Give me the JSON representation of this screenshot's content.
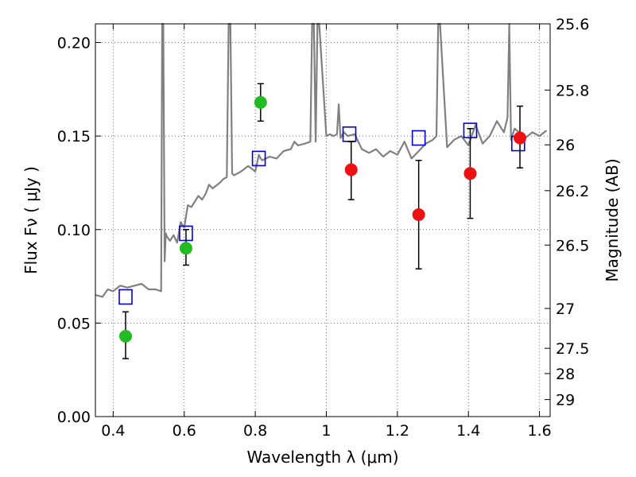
{
  "chart_data": {
    "type": "scatter",
    "title": "",
    "xlabel": "Wavelength  λ (μm)",
    "ylabel": "Flux  Fν  ( μJy )",
    "ylabel_right": "Magnitude (AB)",
    "xlim": [
      0.35,
      1.63
    ],
    "ylim": [
      0.0,
      0.21
    ],
    "grid": true,
    "x_ticks": [
      0.4,
      0.6,
      0.8,
      1.0,
      1.2,
      1.4,
      1.6
    ],
    "x_tick_labels": [
      "0.4",
      "0.6",
      "0.8",
      "1",
      "1.2",
      "1.4",
      "1.6"
    ],
    "y_ticks": [
      0.0,
      0.05,
      0.1,
      0.15,
      0.2
    ],
    "y_tick_labels": [
      "0.00",
      "0.05",
      "0.10",
      "0.15",
      "0.20"
    ],
    "right_axis_ticks": [
      {
        "label": "25.6",
        "flux": 0.21
      },
      {
        "label": "25.8",
        "flux": 0.1746
      },
      {
        "label": "26",
        "flux": 0.1453
      },
      {
        "label": "26.2",
        "flux": 0.1208
      },
      {
        "label": "26.5",
        "flux": 0.0917
      },
      {
        "label": "27",
        "flux": 0.0578
      },
      {
        "label": "27.5",
        "flux": 0.0365
      },
      {
        "label": "28",
        "flux": 0.023
      },
      {
        "label": "29",
        "flux": 0.0091
      }
    ],
    "series": [
      {
        "kind": "line",
        "color": "#808080",
        "x": [
          0.35,
          0.37,
          0.385,
          0.4,
          0.42,
          0.44,
          0.46,
          0.48,
          0.5,
          0.52,
          0.535,
          0.538,
          0.541,
          0.545,
          0.548,
          0.552,
          0.56,
          0.57,
          0.58,
          0.59,
          0.6,
          0.61,
          0.62,
          0.63,
          0.64,
          0.65,
          0.66,
          0.67,
          0.68,
          0.7,
          0.71,
          0.72,
          0.725,
          0.73,
          0.735,
          0.74,
          0.76,
          0.78,
          0.8,
          0.81,
          0.815,
          0.82,
          0.84,
          0.86,
          0.88,
          0.9,
          0.91,
          0.92,
          0.94,
          0.955,
          0.96,
          0.965,
          0.97,
          0.975,
          0.98,
          1.0,
          1.01,
          1.02,
          1.03,
          1.035,
          1.04,
          1.05,
          1.06,
          1.08,
          1.1,
          1.12,
          1.14,
          1.16,
          1.18,
          1.2,
          1.22,
          1.24,
          1.26,
          1.28,
          1.3,
          1.31,
          1.315,
          1.32,
          1.34,
          1.36,
          1.38,
          1.4,
          1.42,
          1.44,
          1.46,
          1.48,
          1.5,
          1.51,
          1.515,
          1.52,
          1.53,
          1.56,
          1.58,
          1.6,
          1.62
        ],
        "y": [
          0.065,
          0.064,
          0.068,
          0.067,
          0.07,
          0.069,
          0.07,
          0.071,
          0.068,
          0.068,
          0.067,
          0.21,
          0.21,
          0.083,
          0.098,
          0.096,
          0.094,
          0.097,
          0.093,
          0.104,
          0.101,
          0.113,
          0.112,
          0.115,
          0.118,
          0.116,
          0.119,
          0.124,
          0.122,
          0.125,
          0.127,
          0.128,
          0.21,
          0.21,
          0.13,
          0.129,
          0.131,
          0.134,
          0.131,
          0.14,
          0.138,
          0.137,
          0.139,
          0.138,
          0.142,
          0.143,
          0.147,
          0.145,
          0.146,
          0.147,
          0.21,
          0.21,
          0.147,
          0.21,
          0.21,
          0.15,
          0.151,
          0.15,
          0.151,
          0.167,
          0.149,
          0.152,
          0.15,
          0.151,
          0.143,
          0.141,
          0.143,
          0.139,
          0.142,
          0.14,
          0.147,
          0.138,
          0.142,
          0.146,
          0.148,
          0.15,
          0.21,
          0.21,
          0.144,
          0.148,
          0.15,
          0.145,
          0.156,
          0.146,
          0.15,
          0.158,
          0.152,
          0.16,
          0.21,
          0.148,
          0.154,
          0.149,
          0.152,
          0.15,
          0.153
        ]
      },
      {
        "kind": "open-square",
        "name": "",
        "color": "#0000dd",
        "x": [
          0.435,
          0.605,
          0.81,
          1.065,
          1.26,
          1.405,
          1.54
        ],
        "y": [
          0.064,
          0.098,
          0.138,
          0.151,
          0.149,
          0.153,
          0.146
        ]
      },
      {
        "kind": "circle-errorbar",
        "name": "",
        "color": "#22bb22",
        "x": [
          0.435,
          0.605,
          0.815
        ],
        "y": [
          0.043,
          0.09,
          0.168
        ],
        "yerr_low": [
          0.031,
          0.081,
          0.158
        ],
        "yerr_high": [
          0.056,
          0.1,
          0.178
        ]
      },
      {
        "kind": "circle-errorbar",
        "name": "",
        "color": "#ee1111",
        "x": [
          1.07,
          1.26,
          1.405,
          1.545
        ],
        "y": [
          0.132,
          0.108,
          0.13,
          0.149
        ],
        "yerr_low": [
          0.116,
          0.079,
          0.106,
          0.133
        ],
        "yerr_high": [
          0.147,
          0.137,
          0.154,
          0.166
        ]
      }
    ]
  }
}
